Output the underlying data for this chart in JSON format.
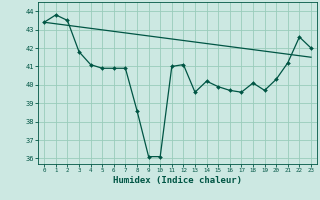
{
  "title": "",
  "xlabel": "Humidex (Indice chaleur)",
  "ylabel": "",
  "bg_color": "#cce8e2",
  "grid_color": "#99ccbb",
  "line_color": "#005544",
  "x_values": [
    0,
    1,
    2,
    3,
    4,
    5,
    6,
    7,
    8,
    9,
    10,
    11,
    12,
    13,
    14,
    15,
    16,
    17,
    18,
    19,
    20,
    21,
    22,
    23
  ],
  "y_main": [
    43.4,
    43.8,
    43.5,
    41.8,
    41.1,
    40.9,
    40.9,
    40.9,
    38.6,
    36.1,
    36.1,
    41.0,
    41.1,
    39.6,
    40.2,
    39.9,
    39.7,
    39.6,
    40.1,
    39.7,
    40.3,
    41.2,
    42.6,
    42.0
  ],
  "y_trend_x": [
    0,
    23
  ],
  "y_trend_y": [
    43.4,
    41.5
  ],
  "ylim": [
    35.7,
    44.5
  ],
  "xlim": [
    -0.5,
    23.5
  ],
  "yticks": [
    36,
    37,
    38,
    39,
    40,
    41,
    42,
    43,
    44
  ],
  "xticks": [
    0,
    1,
    2,
    3,
    4,
    5,
    6,
    7,
    8,
    9,
    10,
    11,
    12,
    13,
    14,
    15,
    16,
    17,
    18,
    19,
    20,
    21,
    22,
    23
  ]
}
